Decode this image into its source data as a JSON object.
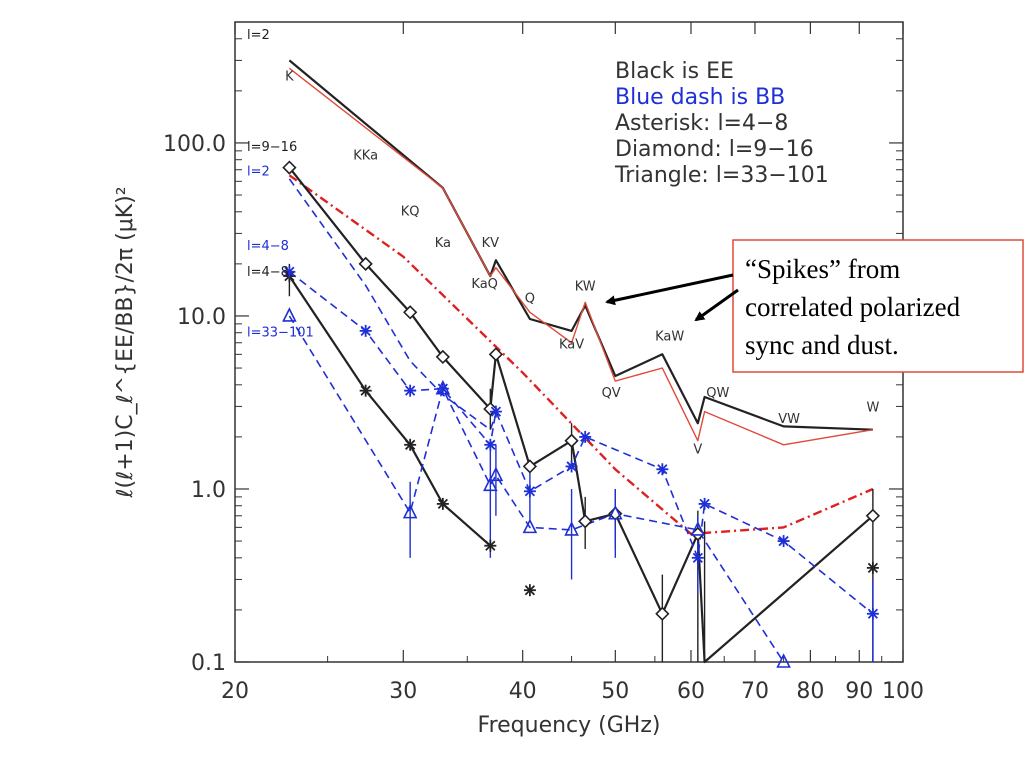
{
  "chart_data": {
    "type": "line",
    "title": "",
    "xlabel": "Frequency (GHz)",
    "ylabel": "ℓ(ℓ+1)C_ℓ^{EE/BB}/2π  (μK)²",
    "xscale": "log",
    "yscale": "log",
    "xlim": [
      20,
      100
    ],
    "ylim": [
      0.1,
      500
    ],
    "x_ticks": [
      {
        "v": 20,
        "label": "20"
      },
      {
        "v": 30,
        "label": "30"
      },
      {
        "v": 40,
        "label": "40"
      },
      {
        "v": 50,
        "label": "50"
      },
      {
        "v": 60,
        "label": "60"
      },
      {
        "v": 70,
        "label": "70"
      },
      {
        "v": 80,
        "label": "80"
      },
      {
        "v": 90,
        "label": "90"
      },
      {
        "v": 100,
        "label": "100"
      }
    ],
    "y_ticks": [
      {
        "v": 0.1,
        "label": "0.1"
      },
      {
        "v": 1,
        "label": "1.0"
      },
      {
        "v": 10,
        "label": "10.0"
      },
      {
        "v": 100,
        "label": "100.0"
      }
    ],
    "legend": {
      "placement": "top-right",
      "entries": [
        {
          "text": "Black is EE",
          "color": "#333333"
        },
        {
          "text": "Blue dash is BB",
          "color": "#1f2fd6"
        },
        {
          "text": "Asterisk: l=4−8",
          "color": "#333333"
        },
        {
          "text": "Diamond: l=9−16",
          "color": "#333333"
        },
        {
          "text": "Triangle: l=33−101",
          "color": "#333333"
        }
      ]
    },
    "series": [
      {
        "name": "l=2",
        "color": "#222222",
        "style": "solid",
        "marker": "none",
        "x": [
          22.8,
          33,
          37,
          37.5,
          40.7,
          45,
          46.5,
          50,
          56,
          61,
          62,
          75,
          93
        ],
        "y": [
          300,
          55,
          17,
          21,
          9.6,
          8.2,
          11.5,
          4.5,
          6,
          2.4,
          3.4,
          2.3,
          2.2
        ]
      },
      {
        "color": "#e04a3a",
        "style": "solid",
        "marker": "none",
        "x": [
          22.8,
          33,
          37,
          37.5,
          40.7,
          45,
          46.5,
          50,
          56,
          61,
          62,
          75,
          93
        ],
        "y": [
          270,
          55,
          17,
          19,
          10.5,
          7,
          12,
          4.2,
          5,
          1.9,
          2.8,
          1.8,
          2.2
        ]
      },
      {
        "color": "#e02020",
        "style": "dashdot",
        "marker": "none",
        "x": [
          22.8,
          30,
          40,
          50,
          60,
          75,
          93
        ],
        "y": [
          65,
          22,
          4.7,
          1.3,
          0.55,
          0.6,
          1.0
        ]
      },
      {
        "name": "l=9-16",
        "color": "#222222",
        "style": "solid",
        "marker": "diamond",
        "x": [
          22.8,
          27.4,
          30.5,
          33,
          37,
          37.5,
          40.7,
          45,
          46.5,
          50,
          56,
          61,
          62,
          93
        ],
        "y": [
          72,
          20,
          10.5,
          5.8,
          2.9,
          6.0,
          1.35,
          1.9,
          0.65,
          0.72,
          0.19,
          0.55,
          0.09,
          0.7
        ]
      },
      {
        "name": "l=4-8",
        "color": "#222222",
        "style": "solid",
        "marker": "asterisk",
        "x": [
          22.8,
          27.4,
          30.5,
          33,
          37
        ],
        "y": [
          17,
          3.7,
          1.8,
          0.82,
          0.47
        ]
      },
      {
        "color": "#222222",
        "style": "none",
        "marker": "asterisk",
        "x": [
          40.7,
          93
        ],
        "y": [
          0.26,
          0.35
        ]
      },
      {
        "name": "l=2",
        "color": "#1f2fd6",
        "style": "dashed",
        "marker": "none",
        "x": [
          22.8,
          27.4,
          30.5,
          33,
          37,
          37.5
        ],
        "y": [
          62,
          15,
          5.5,
          3.5,
          2.2,
          2.7
        ]
      },
      {
        "name": "l=4-8",
        "color": "#1f2fd6",
        "style": "dashed",
        "marker": "asterisk",
        "x": [
          22.8,
          27.4,
          30.5,
          33,
          37,
          37.5,
          40.7,
          45,
          46.5,
          56,
          61,
          62,
          75,
          93
        ],
        "y": [
          18,
          8.2,
          3.7,
          3.8,
          1.8,
          2.8,
          0.97,
          1.35,
          2.0,
          1.3,
          0.4,
          0.82,
          0.5,
          0.19
        ]
      },
      {
        "name": "l=33-101",
        "color": "#1f2fd6",
        "style": "dashed",
        "marker": "triangle",
        "x": [
          22.8,
          30.5,
          33,
          37,
          37.5,
          40.7,
          45,
          50,
          61,
          75
        ],
        "y": [
          10,
          0.73,
          3.8,
          1.05,
          1.2,
          0.6,
          0.58,
          0.72,
          0.58,
          0.1
        ]
      }
    ],
    "error_bars": [
      {
        "x": 22.8,
        "ylo": 13,
        "yhi": 20,
        "color": "#222222"
      },
      {
        "x": 37,
        "ylo": 2.2,
        "yhi": 3.8,
        "color": "#222222"
      },
      {
        "x": 45,
        "ylo": 1.4,
        "yhi": 2.4,
        "color": "#222222"
      },
      {
        "x": 46.5,
        "ylo": 0.45,
        "yhi": 0.9,
        "color": "#222222"
      },
      {
        "x": 50,
        "ylo": 0.45,
        "yhi": 1.0,
        "color": "#222222"
      },
      {
        "x": 56,
        "ylo": 0.09,
        "yhi": 0.32,
        "color": "#222222"
      },
      {
        "x": 61,
        "ylo": 0.09,
        "yhi": 0.75,
        "color": "#222222"
      },
      {
        "x": 62,
        "ylo": 0.09,
        "yhi": 0.65,
        "color": "#222222"
      },
      {
        "x": 93,
        "ylo": 0.09,
        "yhi": 1.0,
        "color": "#222222"
      },
      {
        "x": 30.5,
        "ylo": 0.4,
        "yhi": 1.1,
        "color": "#1f2fd6"
      },
      {
        "x": 37,
        "ylo": 0.4,
        "yhi": 1.8,
        "color": "#1f2fd6"
      },
      {
        "x": 37.5,
        "ylo": 0.7,
        "yhi": 1.8,
        "color": "#1f2fd6"
      },
      {
        "x": 40.7,
        "ylo": 0.65,
        "yhi": 1.4,
        "color": "#1f2fd6"
      },
      {
        "x": 45,
        "ylo": 0.3,
        "yhi": 1.0,
        "color": "#1f2fd6"
      },
      {
        "x": 50,
        "ylo": 0.4,
        "yhi": 1.0,
        "color": "#1f2fd6"
      },
      {
        "x": 61,
        "ylo": 0.25,
        "yhi": 0.7,
        "color": "#1f2fd6"
      },
      {
        "x": 93,
        "ylo": 0.09,
        "yhi": 0.3,
        "color": "#1f2fd6"
      }
    ],
    "band_labels": [
      {
        "text": "K",
        "x": 22.8,
        "y": 230
      },
      {
        "text": "KKa",
        "x": 27.4,
        "y": 80
      },
      {
        "text": "KQ",
        "x": 30.5,
        "y": 38
      },
      {
        "text": "Ka",
        "x": 33,
        "y": 25
      },
      {
        "text": "KV",
        "x": 37,
        "y": 25
      },
      {
        "text": "KaQ",
        "x": 36.5,
        "y": 14.5
      },
      {
        "text": "Q",
        "x": 40.7,
        "y": 12
      },
      {
        "text": "KW",
        "x": 46.5,
        "y": 14
      },
      {
        "text": "KaV",
        "x": 45,
        "y": 6.5
      },
      {
        "text": "QV",
        "x": 49.5,
        "y": 3.4
      },
      {
        "text": "KaW",
        "x": 57,
        "y": 7.2
      },
      {
        "text": "QW",
        "x": 64,
        "y": 3.4
      },
      {
        "text": "V",
        "x": 61,
        "y": 1.6
      },
      {
        "text": "VW",
        "x": 76,
        "y": 2.4
      },
      {
        "text": "W",
        "x": 93,
        "y": 2.8
      }
    ],
    "side_labels": [
      {
        "text": "l=2",
        "color": "#222222",
        "y": 400
      },
      {
        "text": "l=9−16",
        "color": "#222222",
        "y": 90
      },
      {
        "text": "l=2",
        "color": "#1f2fd6",
        "y": 65
      },
      {
        "text": "l=4−8",
        "color": "#1f2fd6",
        "y": 24
      },
      {
        "text": "l=4−8",
        "color": "#222222",
        "y": 17
      },
      {
        "text": "l=33−101",
        "color": "#1f2fd6",
        "y": 7.6
      }
    ],
    "callout": {
      "lines": [
        "“Spikes” from",
        "correlated polarized",
        "sync and dust."
      ],
      "border_color": "#e04a3a"
    }
  }
}
